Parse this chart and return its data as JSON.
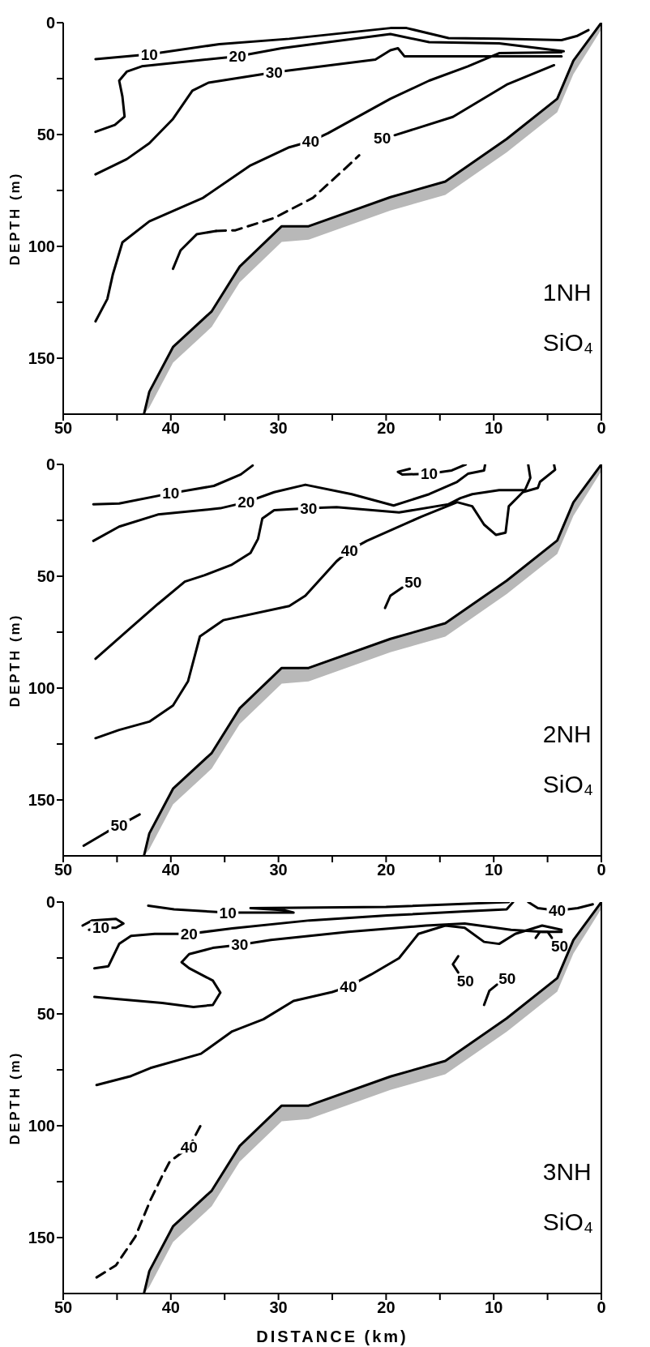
{
  "chart_data": [
    {
      "type": "line",
      "ylabel": "DEPTH (m)",
      "xlim": [
        50,
        0
      ],
      "ylim": [
        175,
        0
      ],
      "xticks": [
        50,
        {
          "value": 45,
          "label": null
        },
        40,
        {
          "value": 35,
          "label": null
        },
        30,
        {
          "value": 25,
          "label": null
        },
        20,
        {
          "value": 15,
          "label": null
        },
        10,
        {
          "value": 5,
          "label": null
        },
        0
      ],
      "yticks": [
        0,
        {
          "value": 25,
          "label": null
        },
        50,
        {
          "value": 75,
          "label": null
        },
        100,
        {
          "value": 125,
          "label": null
        },
        150
      ],
      "series": [
        {
          "x": [
            47,
            42,
            35.5,
            29,
            19.6,
            18.1,
            14.2,
            9.5,
            3.7,
            2.3,
            1.2
          ],
          "values": [
            16.3,
            14.1,
            9.6,
            7.2,
            2.4,
            2.4,
            6.9,
            7.2,
            7.8,
            6,
            3.3
          ],
          "color": "#000000"
        },
        {
          "x": [
            47,
            45.2,
            44.3,
            44.5,
            44.8,
            44.1,
            42.7,
            33.8,
            29.7,
            19.6,
            16,
            9.5,
            3.5
          ],
          "values": [
            48.8,
            45.7,
            42,
            33,
            25.9,
            21.9,
            19.5,
            15,
            11.4,
            5.1,
            8.7,
            9.2,
            12.8
          ],
          "color": "#000000"
        },
        {
          "x": [
            47,
            44.1,
            42,
            39.8,
            38,
            36.5,
            30.4,
            21,
            19.6,
            18.9,
            18.3,
            16,
            3.7
          ],
          "values": [
            67.8,
            61,
            53.9,
            43,
            30.4,
            26.8,
            22.2,
            16.5,
            12.3,
            11.4,
            15,
            15,
            15
          ],
          "color": "#000000"
        },
        {
          "x": [
            47,
            45.9,
            45.4,
            44.5,
            42,
            37,
            32.6,
            29,
            27,
            25.4,
            19.6,
            16,
            12.4,
            9.5,
            3.7
          ],
          "values": [
            133.5,
            123.5,
            112.7,
            98.2,
            88.8,
            78.3,
            63.8,
            55.7,
            53,
            49.4,
            34,
            25.9,
            19.5,
            13.6,
            13.2
          ],
          "color": "#000000"
        },
        {
          "x": [
            39.8,
            39.1,
            37.6,
            35.8
          ],
          "values": [
            110,
            101.8,
            94.6,
            93.1
          ],
          "color": "#000000"
        },
        {
          "x": [
            35.8,
            34,
            30.4,
            26.8,
            23.9,
            22.5
          ],
          "values": [
            93.1,
            92.8,
            87.3,
            78.3,
            65.6,
            59.3
          ],
          "color": "#000000",
          "line_style": "dashed"
        },
        {
          "x": [
            19.2,
            17.4,
            13.8,
            8.8,
            4.4
          ],
          "values": [
            50.3,
            47.6,
            42.1,
            27.7,
            19
          ],
          "color": "#000000"
        },
        {
          "x": [
            42.5,
            42,
            39.8,
            36.2,
            33.6,
            29.7,
            27.2,
            19.6,
            14.5,
            8.8,
            4.1,
            2.6,
            0
          ],
          "values": [
            175,
            165,
            145,
            129,
            109,
            91,
            91,
            78,
            71,
            52,
            34,
            17,
            0
          ],
          "lower": [
            175,
            165,
            145,
            129,
            109,
            91,
            91,
            78,
            71,
            52,
            34,
            17,
            0
          ],
          "upper": [
            175,
            172,
            152,
            136,
            116,
            98,
            97,
            84,
            77,
            58,
            40,
            23,
            3
          ],
          "color": "#000000"
        }
      ],
      "annotations": [
        {
          "text": "10",
          "x": 42,
          "y": 14.1
        },
        {
          "text": "20",
          "x": 33.8,
          "y": 15
        },
        {
          "text": "30",
          "x": 30.4,
          "y": 22.2
        },
        {
          "text": "40",
          "x": 27,
          "y": 53
        },
        {
          "text": "50",
          "x": 19.2,
          "y": 50.3
        },
        "1NH",
        "SiO₄"
      ]
    },
    {
      "type": "line",
      "ylabel": "DEPTH (m)",
      "xlim": [
        50,
        0
      ],
      "ylim": [
        175,
        0
      ],
      "xticks": [
        50,
        {
          "value": 45,
          "label": null
        },
        40,
        {
          "value": 35,
          "label": null
        },
        30,
        {
          "value": 25,
          "label": null
        },
        20,
        {
          "value": 15,
          "label": null
        },
        10,
        {
          "value": 5,
          "label": null
        },
        0
      ],
      "yticks": [
        0,
        {
          "value": 25,
          "label": null
        },
        50,
        {
          "value": 75,
          "label": null
        },
        100,
        {
          "value": 125,
          "label": null
        },
        150
      ],
      "series": [
        {
          "x": [
            47.2,
            44.8,
            40,
            36,
            33.5,
            32.4
          ],
          "values": [
            17.8,
            17.5,
            12.9,
            9.6,
            4.5,
            0.5
          ],
          "color": "#000000"
        },
        {
          "x": [
            12.6,
            13.9,
            16,
            18.5,
            18.9,
            17.8
          ],
          "values": [
            0,
            2.7,
            4.2,
            4.5,
            3.3,
            2
          ],
          "color": "#000000"
        },
        {
          "x": [
            47.2,
            44.8,
            41.2,
            35.4,
            33,
            30.4,
            27.5,
            23.2,
            19.3,
            16,
            13.4,
            12.4,
            10.9,
            10.8
          ],
          "values": [
            34.2,
            27.8,
            22.4,
            19.6,
            16.9,
            12.4,
            9.1,
            13.3,
            18.4,
            13.3,
            7.8,
            4.2,
            2.7,
            0
          ],
          "color": "#000000"
        },
        {
          "x": [
            47,
            43.8,
            41.2,
            38.7,
            36.9,
            34.4,
            32.6,
            31.9,
            31.7,
            31.5,
            30.4,
            27.2,
            24.6,
            18.8,
            14.2,
            13.1,
            12,
            9.5,
            7.1,
            6.6,
            6.8
          ],
          "values": [
            86.9,
            73.3,
            62.4,
            52.4,
            49.6,
            45,
            39.6,
            33.3,
            28.7,
            24.2,
            20.5,
            19.6,
            19.1,
            21.5,
            17.8,
            15.1,
            13.3,
            11.5,
            11.5,
            6,
            0
          ],
          "color": "#000000"
        },
        {
          "x": [
            47,
            44.8,
            42,
            39.8,
            38.4,
            37.8,
            37.3,
            35.1,
            29,
            27.5,
            24.6,
            23.4,
            21.8,
            16.7,
            13.4,
            12,
            10.9,
            9.8,
            8.9,
            8.6,
            7.3,
            5.9,
            5.7,
            4.3,
            4.4
          ],
          "values": [
            122.4,
            118.7,
            115,
            107.8,
            96.9,
            86,
            76.9,
            69.6,
            63.3,
            58.7,
            43.3,
            38.4,
            34.2,
            23.3,
            16.9,
            18.7,
            26.9,
            31.5,
            30.5,
            18.7,
            12.4,
            10.5,
            7.8,
            2.4,
            0
          ],
          "color": "#000000"
        },
        {
          "x": [
            20.1,
            19.6,
            18.5
          ],
          "values": [
            64.2,
            58.7,
            55.1
          ],
          "color": "#000000"
        },
        {
          "x": [
            48.1,
            45.9,
            44.8,
            42.9
          ],
          "values": [
            170.5,
            164.2,
            161.5,
            156.5
          ],
          "color": "#000000"
        },
        {
          "x": [
            42.5,
            42,
            39.8,
            36.2,
            33.6,
            29.7,
            27.2,
            19.6,
            14.5,
            8.8,
            4.1,
            2.6,
            0
          ],
          "values": [
            175,
            165,
            145,
            129,
            109,
            91,
            91,
            78,
            71,
            52,
            34,
            17,
            0
          ],
          "lower": [
            175,
            165,
            145,
            129,
            109,
            91,
            91,
            78,
            71,
            52,
            34,
            17,
            0
          ],
          "upper": [
            175,
            172,
            152,
            136,
            116,
            98,
            97,
            84,
            77,
            58,
            40,
            23,
            3
          ],
          "color": "#000000"
        }
      ],
      "annotations": [
        {
          "text": "10",
          "x": 40,
          "y": 12.9
        },
        {
          "text": "10",
          "x": 16,
          "y": 4.2
        },
        {
          "text": "20",
          "x": 33,
          "y": 16.9
        },
        {
          "text": "30",
          "x": 27.2,
          "y": 19.6
        },
        {
          "text": "40",
          "x": 23.4,
          "y": 38.4
        },
        {
          "text": "50",
          "x": 18.5,
          "y": 55.1
        },
        {
          "text": "50",
          "x": 44.8,
          "y": 161.5
        },
        "2NH",
        "SiO₄"
      ]
    },
    {
      "type": "line",
      "xlabel": "DISTANCE (km)",
      "ylabel": "DEPTH (m)",
      "xlim": [
        50,
        0
      ],
      "ylim": [
        175,
        0
      ],
      "xticks": [
        50,
        {
          "value": 45,
          "label": null
        },
        40,
        {
          "value": 35,
          "label": null
        },
        30,
        {
          "value": 25,
          "label": null
        },
        20,
        {
          "value": 15,
          "label": null
        },
        10,
        {
          "value": 5,
          "label": null
        },
        0
      ],
      "yticks": [
        0,
        {
          "value": 25,
          "label": null
        },
        50,
        {
          "value": 75,
          "label": null
        },
        100,
        {
          "value": 125,
          "label": null
        },
        150
      ],
      "series": [
        {
          "x": [
            48.2,
            47.3,
            45.1,
            44.4,
            45.1,
            46.5,
            47.6
          ],
          "values": [
            10.5,
            8.2,
            7.5,
            9.6,
            11.5,
            11.5,
            12.4
          ],
          "color": "#000000"
        },
        {
          "x": [
            42.1,
            39.7,
            34.7,
            28.6,
            29.5,
            32.6,
            20,
            8.6
          ],
          "values": [
            1.6,
            3.3,
            4.7,
            4.7,
            3.6,
            2.7,
            2.2,
            0
          ],
          "color": "#000000"
        },
        {
          "x": [
            47.1,
            45.8,
            44.8,
            43.7,
            41.5,
            38.3,
            34.3,
            27.1,
            19.9,
            12.7,
            8.8,
            8.2
          ],
          "values": [
            29.6,
            28.7,
            18.7,
            15.1,
            14.2,
            14.2,
            11.8,
            8.2,
            6,
            4.2,
            3.3,
            0
          ],
          "color": "#000000"
        },
        {
          "x": [
            6.8,
            5.9,
            4.1,
            2.2,
            0.8
          ],
          "values": [
            0,
            2.7,
            3.8,
            2.7,
            1
          ],
          "color": "#000000"
        },
        {
          "x": [
            47.1,
            45.1,
            40.8,
            37.9,
            36.1,
            35.4,
            36.1,
            38.3,
            39,
            38.3,
            36.1,
            33.6,
            30.7,
            23.5,
            16.3,
            12.7,
            8.4,
            5.5,
            3.7
          ],
          "values": [
            42.4,
            43.3,
            45.1,
            46.9,
            46,
            40.5,
            35.1,
            29.6,
            26.9,
            23.3,
            20.5,
            19.1,
            16.9,
            13.3,
            10.5,
            9.6,
            12.4,
            13.3,
            13.3
          ],
          "color": "#000000"
        },
        {
          "x": [
            46.9,
            43.7,
            41.9,
            37.2,
            34.3,
            31.4,
            28.6,
            25,
            23.5,
            21.4,
            18.8,
            17,
            14.5,
            12.7,
            10.9,
            9.5,
            8,
            5.5,
            3.7
          ],
          "values": [
            81.8,
            77.8,
            74.2,
            67.8,
            57.8,
            52.4,
            44.2,
            40.2,
            37.8,
            32.4,
            25.1,
            14.2,
            10.5,
            11.5,
            17.8,
            18.7,
            14.2,
            10.5,
            12.4
          ],
          "color": "#000000"
        },
        {
          "x": [
            13.3,
            13.8,
            13.3
          ],
          "values": [
            24.2,
            27.8,
            31.5
          ],
          "color": "#000000"
        },
        {
          "x": [
            10.9,
            10.4,
            9.7
          ],
          "values": [
            46,
            39.6,
            36.9
          ],
          "color": "#000000"
        },
        {
          "x": [
            6.1,
            5.7,
            5,
            4.6
          ],
          "values": [
            16,
            13.3,
            13.3,
            16
          ],
          "color": "#000000"
        },
        {
          "x": [
            46.9,
            45.1,
            43.3,
            41.9,
            40.8,
            40.1,
            38.3,
            37.2
          ],
          "values": [
            167.8,
            162.4,
            149.6,
            133.3,
            122.4,
            116,
            109.6,
            99.6
          ],
          "color": "#000000",
          "line_style": "dashed"
        },
        {
          "x": [
            42.5,
            42,
            39.8,
            36.2,
            33.6,
            29.7,
            27.2,
            19.6,
            14.5,
            8.8,
            4.1,
            2.6,
            0
          ],
          "values": [
            175,
            165,
            145,
            129,
            109,
            91,
            91,
            78,
            71,
            52,
            34,
            17,
            0
          ],
          "lower": [
            175,
            165,
            145,
            129,
            109,
            91,
            91,
            78,
            71,
            52,
            34,
            17,
            0
          ],
          "upper": [
            175,
            172,
            152,
            136,
            116,
            98,
            97,
            84,
            77,
            58,
            40,
            23,
            3
          ],
          "color": "#000000"
        }
      ],
      "annotations": [
        {
          "text": "10",
          "x": 46.5,
          "y": 11.5
        },
        {
          "text": "10",
          "x": 34.7,
          "y": 4.7
        },
        {
          "text": "20",
          "x": 38.3,
          "y": 14.2
        },
        {
          "text": "30",
          "x": 33.6,
          "y": 19.1
        },
        {
          "text": "40",
          "x": 23.5,
          "y": 37.8
        },
        {
          "text": "40",
          "x": 4.1,
          "y": 3.8
        },
        {
          "text": "50",
          "x": 13.3,
          "y": 31.5
        },
        {
          "text": "50",
          "x": 9.7,
          "y": 36.9
        },
        {
          "text": "50",
          "x": 4.6,
          "y": 16
        },
        {
          "text": "40",
          "x": 38.3,
          "y": 109.6
        },
        "3NH",
        "SiO₄"
      ]
    }
  ]
}
